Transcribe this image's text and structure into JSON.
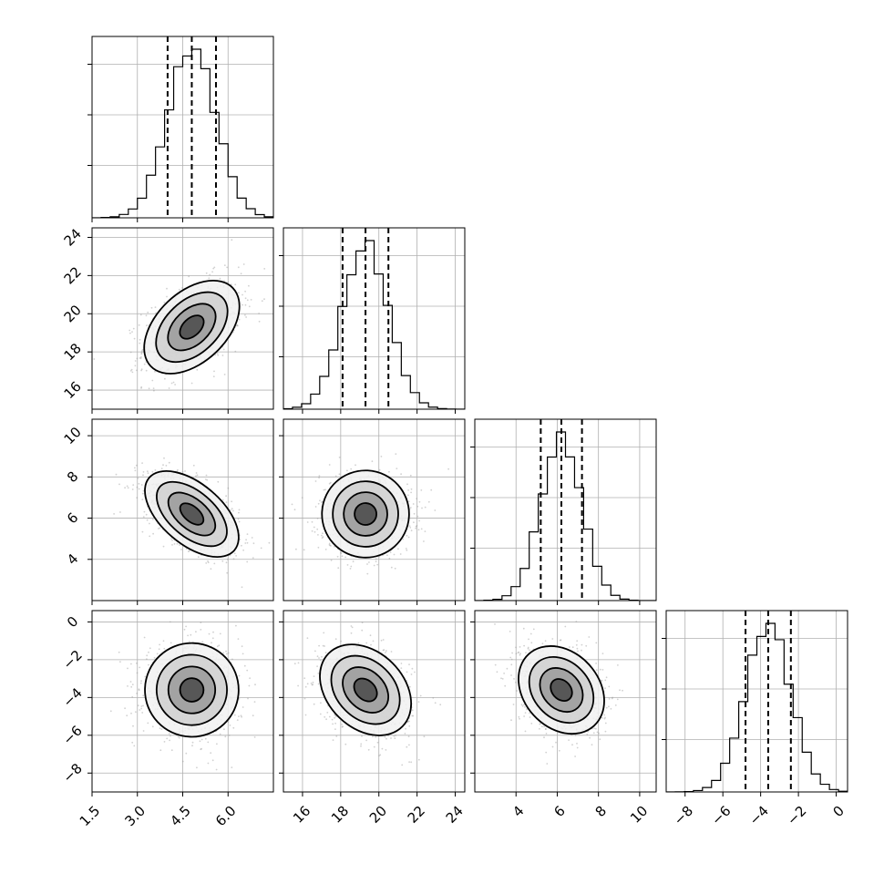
{
  "chart_data": {
    "type": "corner",
    "parameters": [
      {
        "name": "",
        "range": [
          1.5,
          7.5
        ],
        "ticks": [
          1.5,
          3.0,
          4.5,
          6.0
        ],
        "tick_labels": [
          "1.5",
          "3.0",
          "4.5",
          "6.0"
        ],
        "quantiles": [
          4.0,
          4.8,
          5.6
        ],
        "mean": 4.8,
        "sd": 0.8
      },
      {
        "name": "",
        "range": [
          15,
          24.5
        ],
        "ticks": [
          16,
          18,
          20,
          22,
          24
        ],
        "tick_labels": [
          "16",
          "18",
          "20",
          "22",
          "24"
        ],
        "quantiles": [
          18.1,
          19.3,
          20.5
        ],
        "mean": 19.3,
        "sd": 1.2
      },
      {
        "name": "",
        "range": [
          2,
          10.8
        ],
        "ticks": [
          4,
          6,
          8,
          10
        ],
        "tick_labels": [
          "4",
          "6",
          "8",
          "10"
        ],
        "quantiles": [
          5.2,
          6.2,
          7.2
        ],
        "mean": 6.2,
        "sd": 1.0
      },
      {
        "name": "",
        "range": [
          -9,
          0.6
        ],
        "ticks": [
          -8,
          -6,
          -4,
          -2,
          0
        ],
        "tick_labels": [
          "−8",
          "−6",
          "−4",
          "−2",
          "0"
        ],
        "quantiles": [
          -4.8,
          -3.6,
          -2.4
        ],
        "mean": -3.6,
        "sd": 1.2
      }
    ],
    "correlations": [
      {
        "i": 1,
        "j": 0,
        "rho": 0.45
      },
      {
        "i": 2,
        "j": 0,
        "rho": -0.55
      },
      {
        "i": 2,
        "j": 1,
        "rho": 0.0
      },
      {
        "i": 3,
        "j": 0,
        "rho": 0.0
      },
      {
        "i": 3,
        "j": 1,
        "rho": -0.3
      },
      {
        "i": 3,
        "j": 2,
        "rho": -0.25
      }
    ],
    "contour_sigma_levels": [
      0.5,
      1.0,
      1.5,
      2.0
    ],
    "grid": true,
    "histogram_bins": 20
  }
}
